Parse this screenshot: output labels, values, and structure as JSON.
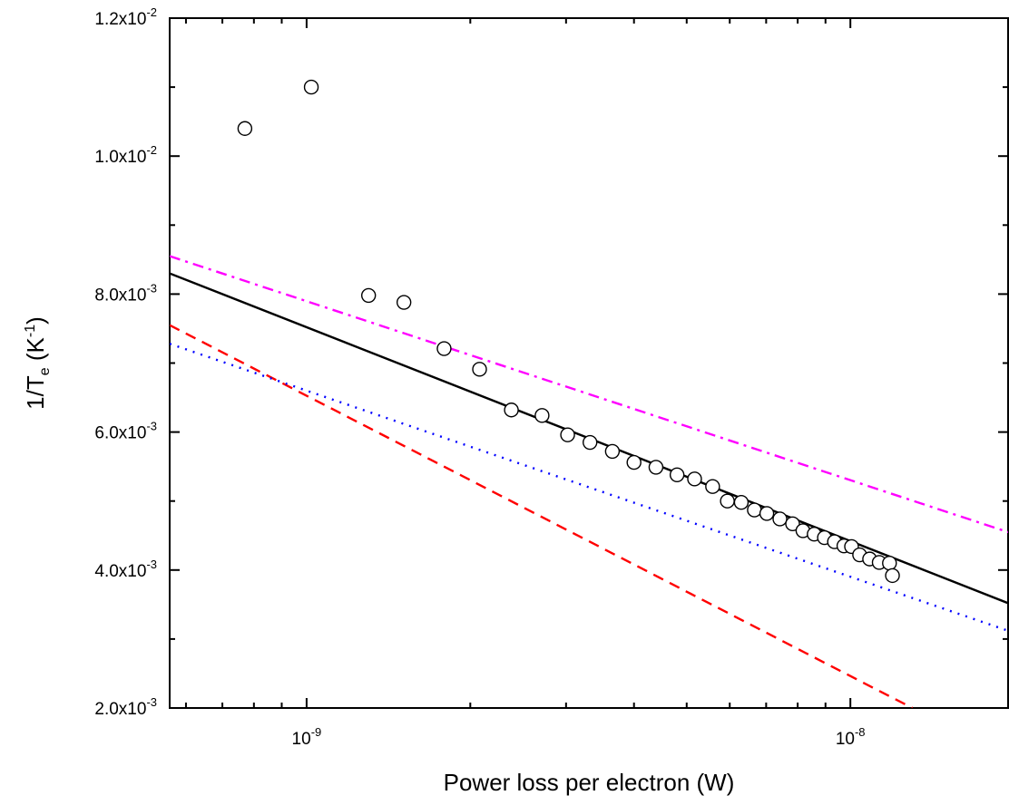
{
  "chart_data": {
    "type": "scatter",
    "title": "",
    "xlabel": "Power loss per electron (W)",
    "ylabel": {
      "main": "1/T",
      "sub": "e",
      "unit_open": " (K",
      "unit_sup": "-1",
      "unit_close": ")"
    },
    "x_scale": "log",
    "xlim": [
      5.6e-10,
      1.95e-08
    ],
    "ylim": [
      0.002,
      0.012
    ],
    "x_ticks": [
      {
        "value": 1e-09,
        "base": "10",
        "exp": "-9"
      },
      {
        "value": 1e-08,
        "base": "10",
        "exp": "-8"
      }
    ],
    "y_ticks": [
      {
        "value": 0.002,
        "mant": "2.0x10",
        "exp": "-3"
      },
      {
        "value": 0.004,
        "mant": "4.0x10",
        "exp": "-3"
      },
      {
        "value": 0.006,
        "mant": "6.0x10",
        "exp": "-3"
      },
      {
        "value": 0.008,
        "mant": "8.0x10",
        "exp": "-3"
      },
      {
        "value": 0.01,
        "mant": "1.0x10",
        "exp": "-2"
      },
      {
        "value": 0.012,
        "mant": "1.2x10",
        "exp": "-2"
      }
    ],
    "grid": false,
    "legend": "none",
    "series": [
      {
        "kind": "points",
        "marker": "open-circle",
        "color": "#000000",
        "points": [
          [
            7.7e-10,
            0.0104
          ],
          [
            1.02e-09,
            0.011
          ],
          [
            1.3e-09,
            0.00798
          ],
          [
            1.51e-09,
            0.00788
          ],
          [
            1.79e-09,
            0.00721
          ],
          [
            2.08e-09,
            0.00691
          ],
          [
            2.38e-09,
            0.00632
          ],
          [
            2.71e-09,
            0.00624
          ],
          [
            3.02e-09,
            0.00596
          ],
          [
            3.32e-09,
            0.00585
          ],
          [
            3.65e-09,
            0.00572
          ],
          [
            4e-09,
            0.00556
          ],
          [
            4.39e-09,
            0.00549
          ],
          [
            4.8e-09,
            0.00538
          ],
          [
            5.17e-09,
            0.00532
          ],
          [
            5.58e-09,
            0.00521
          ],
          [
            5.94e-09,
            0.005
          ],
          [
            6.3e-09,
            0.00498
          ],
          [
            6.66e-09,
            0.00487
          ],
          [
            7.02e-09,
            0.00482
          ],
          [
            7.42e-09,
            0.00474
          ],
          [
            7.83e-09,
            0.00467
          ],
          [
            8.18e-09,
            0.00457
          ],
          [
            8.58e-09,
            0.00452
          ],
          [
            8.96e-09,
            0.00447
          ],
          [
            9.35e-09,
            0.00441
          ],
          [
            9.73e-09,
            0.00435
          ],
          [
            1.005e-08,
            0.00434
          ],
          [
            1.04e-08,
            0.00422
          ],
          [
            1.085e-08,
            0.00416
          ],
          [
            1.13e-08,
            0.00411
          ],
          [
            1.18e-08,
            0.0041
          ],
          [
            1.195e-08,
            0.00392
          ]
        ]
      },
      {
        "kind": "line",
        "style": "solid",
        "color": "#000000",
        "points": [
          [
            5.6e-10,
            0.0083
          ],
          [
            1.95e-08,
            0.00352
          ]
        ]
      },
      {
        "kind": "line",
        "style": "dashdot",
        "color": "#ff00ff",
        "points": [
          [
            5.6e-10,
            0.00855
          ],
          [
            1.95e-08,
            0.00455
          ]
        ]
      },
      {
        "kind": "line",
        "style": "dashed",
        "color": "#ff0000",
        "points": [
          [
            5.6e-10,
            0.00755
          ],
          [
            1.3e-08,
            0.002
          ]
        ]
      },
      {
        "kind": "line",
        "style": "dotted",
        "color": "#0000ff",
        "points": [
          [
            5.6e-10,
            0.00728
          ],
          [
            1.95e-08,
            0.00312
          ]
        ]
      }
    ]
  }
}
